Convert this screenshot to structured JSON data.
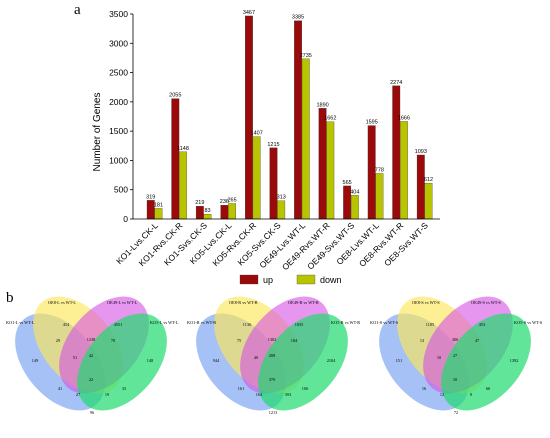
{
  "panel_a_label": "a",
  "panel_b_label": "b",
  "colors": {
    "up": "#9b0a0a",
    "down": "#b8c400"
  },
  "chart_data": {
    "type": "bar",
    "title": "",
    "xlabel": "",
    "ylabel": "Number of Genes",
    "ylim": [
      0,
      3500
    ],
    "yticks": [
      0,
      500,
      1000,
      1500,
      2000,
      2500,
      3000,
      3500
    ],
    "legend_position": "bottom",
    "categories": [
      "KO1-Lvs.CK-L",
      "KO1-Rvs.CK-R",
      "KO1-Svs.CK-S",
      "KO5-Lvs.CK-L",
      "KO5-Rvs.CK-R",
      "KO5-Svs.CK-S",
      "OE49-Lvs.WT-L",
      "OE49-Rvs.WT-R",
      "OE49-Svs.WT-S",
      "OE8-Lvs.WT-L",
      "OE8-Rvs.WT-R",
      "OE8-Svs.WT-S"
    ],
    "series": [
      {
        "name": "up",
        "values": [
          319,
          2055,
          219,
          236,
          3467,
          1215,
          3385,
          1890,
          565,
          1595,
          2274,
          1093
        ]
      },
      {
        "name": "down",
        "values": [
          181,
          1148,
          83,
          265,
          1407,
          313,
          2735,
          1662,
          404,
          778,
          1666,
          612
        ]
      }
    ]
  },
  "venn": [
    {
      "labels": [
        "KO1-L vs WT-L",
        "OE8-L vs WT-L",
        "OE49-L vs WT-L",
        "KO5-L vs WT-L"
      ],
      "values": [
        "149",
        "454",
        "4551",
        "148",
        "29",
        "1238",
        "96",
        "70",
        "41",
        "42",
        "51",
        "22",
        "27",
        "19",
        "33"
      ]
    },
    {
      "labels": [
        "KO1-R vs WT-R",
        "OE8-R vs WT-R",
        "OE49-R vs WT-R",
        "KO5-R vs WT-R"
      ],
      "values": [
        "944",
        "1136",
        "1035",
        "2104",
        "75",
        "1302",
        "1213",
        "184",
        "161",
        "208",
        "40",
        "370",
        "164",
        "393",
        "106"
      ]
    },
    {
      "labels": [
        "KO1-S vs WT-S",
        "OE8-S vs WT-S",
        "OE49-S vs WT-S",
        "KO5-S vs WT-S"
      ],
      "values": [
        "151",
        "1105",
        "453",
        "1392",
        "13",
        "306",
        "72",
        "47",
        "16",
        "27",
        "10",
        "10",
        "12",
        "8",
        "66"
      ]
    }
  ]
}
